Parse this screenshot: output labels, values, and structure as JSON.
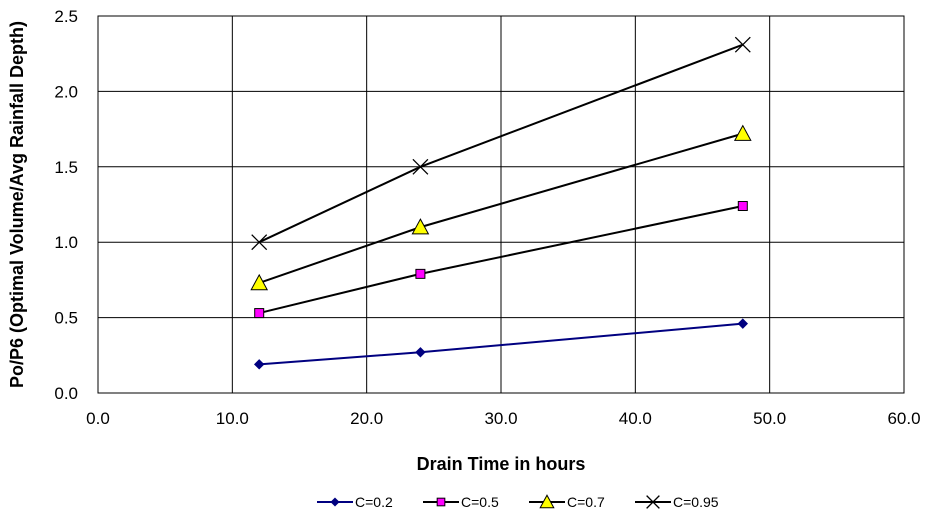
{
  "chart_data": {
    "type": "line",
    "title": "",
    "xlabel": "Drain Time in hours",
    "ylabel": "Po/P6  (Optimal Volume/Avg Rainfall Depth)",
    "xlim": [
      0,
      60
    ],
    "ylim": [
      0,
      2.5
    ],
    "x_ticks": [
      "0.0",
      "10.0",
      "20.0",
      "30.0",
      "40.0",
      "50.0",
      "60.0"
    ],
    "y_ticks": [
      "0.0",
      "0.5",
      "1.0",
      "1.5",
      "2.0",
      "2.5"
    ],
    "grid": true,
    "legend_position": "bottom",
    "series": [
      {
        "name": "C=0.2",
        "color": "#000080",
        "marker": "diamond",
        "marker_fill": "#000080",
        "x": [
          12,
          24,
          48
        ],
        "y": [
          0.19,
          0.27,
          0.46
        ]
      },
      {
        "name": "C=0.5",
        "color": "#000000",
        "marker": "square",
        "marker_fill": "#FF00FF",
        "x": [
          12,
          24,
          48
        ],
        "y": [
          0.53,
          0.79,
          1.24
        ]
      },
      {
        "name": "C=0.7",
        "color": "#000000",
        "marker": "triangle",
        "marker_fill": "#FFFF00",
        "x": [
          12,
          24,
          48
        ],
        "y": [
          0.73,
          1.1,
          1.72
        ]
      },
      {
        "name": "C=0.95",
        "color": "#000000",
        "marker": "x",
        "marker_fill": "none",
        "x": [
          12,
          24,
          48
        ],
        "y": [
          1.0,
          1.5,
          2.31
        ]
      }
    ]
  }
}
